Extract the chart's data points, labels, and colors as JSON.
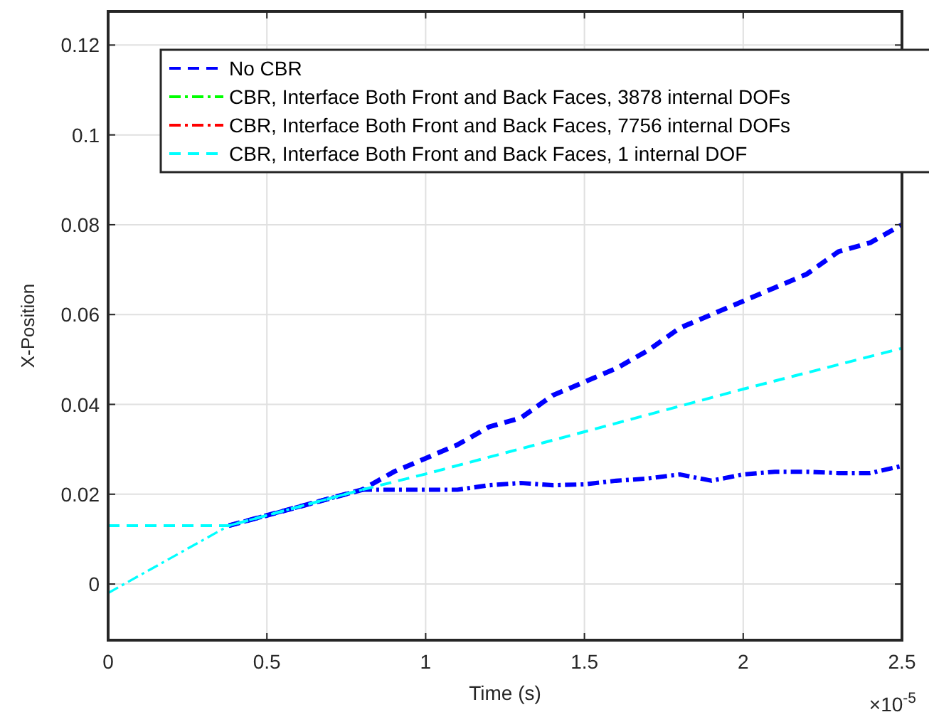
{
  "chart_data": {
    "type": "line",
    "xlabel": "Time (s)",
    "ylabel": "X-Position",
    "annotations": [
      "×10$^{-5}$"
    ],
    "xlim": [
      0,
      2.5
    ],
    "xticks": [
      0,
      0.5,
      1,
      1.5,
      2,
      2.5
    ],
    "ylim": [
      -0.0125,
      0.1275
    ],
    "yticks": [
      0,
      0.02,
      0.04,
      0.06,
      0.08,
      0.1,
      0.12
    ],
    "grid": true,
    "legend": "top right",
    "series": [
      {
        "name": "No CBR",
        "color": "#0000ff",
        "line_style": "dashed",
        "x": [
          0.38,
          0.8,
          0.9,
          1.0,
          1.1,
          1.2,
          1.3,
          1.4,
          1.5,
          1.6,
          1.7,
          1.8,
          1.9,
          2.0,
          2.1,
          2.2,
          2.3,
          2.4,
          2.5
        ],
        "values": [
          0.013,
          0.021,
          0.025,
          0.028,
          0.031,
          0.035,
          0.037,
          0.042,
          0.045,
          0.048,
          0.052,
          0.057,
          0.06,
          0.063,
          0.066,
          0.069,
          0.074,
          0.076,
          0.08
        ]
      },
      {
        "color": "#0000ff",
        "line_style": "dashdot",
        "x": [
          0.38,
          0.8,
          0.9,
          1.0,
          1.1,
          1.2,
          1.3,
          1.4,
          1.5,
          1.6,
          1.7,
          1.8,
          1.9,
          2.0,
          2.1,
          2.2,
          2.3,
          2.4,
          2.5
        ],
        "values": [
          0.013,
          0.021,
          0.021,
          0.021,
          0.021,
          0.022,
          0.0225,
          0.022,
          0.0222,
          0.023,
          0.0235,
          0.0244,
          0.023,
          0.0244,
          0.025,
          0.025,
          0.0247,
          0.0247,
          0.0263
        ]
      },
      {
        "name": "CBR, Interface Both Front and Back Faces, 3878 internal DOFs",
        "color": "#00ff00",
        "line_style": "dashdot"
      },
      {
        "name": "CBR, Interface Both Front and Back Faces, 7756 internal DOFs",
        "color": "#ff0000",
        "line_style": "dashdot"
      },
      {
        "name": "CBR, Interface Both Front and Back Faces, 1 internal DOF",
        "color": "#00ffff",
        "line_style": "dashed",
        "x": [
          0,
          0.38,
          0.8,
          1.0,
          1.5,
          2.0,
          2.5
        ],
        "values": [
          0.013,
          0.013,
          0.021,
          0.0245,
          0.0339,
          0.0434,
          0.0525
        ]
      },
      {
        "color": "#00ffff",
        "line_style": "dashdot",
        "x": [
          0,
          0.38,
          0.8
        ],
        "values": [
          -0.002,
          0.013,
          0.021
        ]
      }
    ]
  }
}
